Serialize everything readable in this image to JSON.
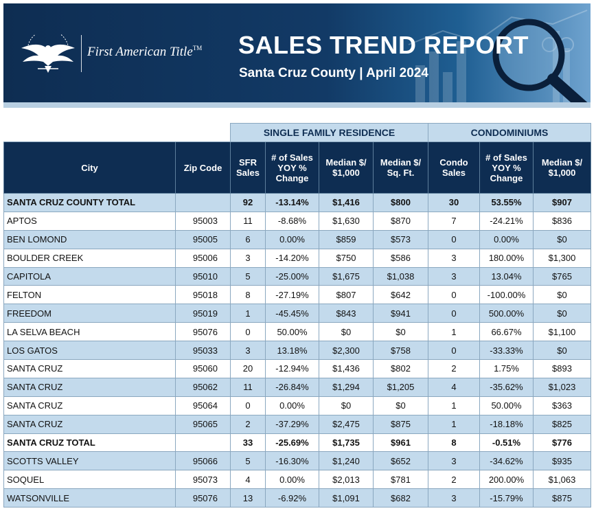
{
  "header": {
    "logo_icon": "eagle-icon",
    "company": "First American Title",
    "trademark": "TM",
    "title": "SALES TREND REPORT",
    "subtitle": "Santa Cruz County | April 2024"
  },
  "table": {
    "groups": {
      "sfr": "SINGLE FAMILY RESIDENCE",
      "condo": "CONDOMINIUMS"
    },
    "columns": [
      "City",
      "Zip Code",
      "SFR Sales",
      "# of Sales YOY % Change",
      "Median $/ $1,000",
      "Median $/ Sq. Ft.",
      "Condo Sales",
      "# of Sales YOY % Change",
      "Median $/ $1,000"
    ],
    "rows": [
      {
        "city": "SANTA CRUZ COUNTY TOTAL",
        "zip": "",
        "sfr_sales": "92",
        "sfr_yoy": "-13.14%",
        "sfr_median": "$1,416",
        "sfr_sqft": "$800",
        "condo_sales": "30",
        "condo_yoy": "53.55%",
        "condo_median": "$907",
        "total": true
      },
      {
        "city": "APTOS",
        "zip": "95003",
        "sfr_sales": "11",
        "sfr_yoy": "-8.68%",
        "sfr_median": "$1,630",
        "sfr_sqft": "$870",
        "condo_sales": "7",
        "condo_yoy": "-24.21%",
        "condo_median": "$836"
      },
      {
        "city": "BEN LOMOND",
        "zip": "95005",
        "sfr_sales": "6",
        "sfr_yoy": "0.00%",
        "sfr_median": "$859",
        "sfr_sqft": "$573",
        "condo_sales": "0",
        "condo_yoy": "0.00%",
        "condo_median": "$0"
      },
      {
        "city": "BOULDER CREEK",
        "zip": "95006",
        "sfr_sales": "3",
        "sfr_yoy": "-14.20%",
        "sfr_median": "$750",
        "sfr_sqft": "$586",
        "condo_sales": "3",
        "condo_yoy": "180.00%",
        "condo_median": "$1,300"
      },
      {
        "city": "CAPITOLA",
        "zip": "95010",
        "sfr_sales": "5",
        "sfr_yoy": "-25.00%",
        "sfr_median": "$1,675",
        "sfr_sqft": "$1,038",
        "condo_sales": "3",
        "condo_yoy": "13.04%",
        "condo_median": "$765"
      },
      {
        "city": "FELTON",
        "zip": "95018",
        "sfr_sales": "8",
        "sfr_yoy": "-27.19%",
        "sfr_median": "$807",
        "sfr_sqft": "$642",
        "condo_sales": "0",
        "condo_yoy": "-100.00%",
        "condo_median": "$0"
      },
      {
        "city": "FREEDOM",
        "zip": "95019",
        "sfr_sales": "1",
        "sfr_yoy": "-45.45%",
        "sfr_median": "$843",
        "sfr_sqft": "$941",
        "condo_sales": "0",
        "condo_yoy": "500.00%",
        "condo_median": "$0"
      },
      {
        "city": "LA SELVA BEACH",
        "zip": "95076",
        "sfr_sales": "0",
        "sfr_yoy": "50.00%",
        "sfr_median": "$0",
        "sfr_sqft": "$0",
        "condo_sales": "1",
        "condo_yoy": "66.67%",
        "condo_median": "$1,100"
      },
      {
        "city": "LOS GATOS",
        "zip": "95033",
        "sfr_sales": "3",
        "sfr_yoy": "13.18%",
        "sfr_median": "$2,300",
        "sfr_sqft": "$758",
        "condo_sales": "0",
        "condo_yoy": "-33.33%",
        "condo_median": "$0"
      },
      {
        "city": "SANTA CRUZ",
        "zip": "95060",
        "sfr_sales": "20",
        "sfr_yoy": "-12.94%",
        "sfr_median": "$1,436",
        "sfr_sqft": "$802",
        "condo_sales": "2",
        "condo_yoy": "1.75%",
        "condo_median": "$893"
      },
      {
        "city": "SANTA CRUZ",
        "zip": "95062",
        "sfr_sales": "11",
        "sfr_yoy": "-26.84%",
        "sfr_median": "$1,294",
        "sfr_sqft": "$1,205",
        "condo_sales": "4",
        "condo_yoy": "-35.62%",
        "condo_median": "$1,023"
      },
      {
        "city": "SANTA CRUZ",
        "zip": "95064",
        "sfr_sales": "0",
        "sfr_yoy": "0.00%",
        "sfr_median": "$0",
        "sfr_sqft": "$0",
        "condo_sales": "1",
        "condo_yoy": "50.00%",
        "condo_median": "$363"
      },
      {
        "city": "SANTA CRUZ",
        "zip": "95065",
        "sfr_sales": "2",
        "sfr_yoy": "-37.29%",
        "sfr_median": "$2,475",
        "sfr_sqft": "$875",
        "condo_sales": "1",
        "condo_yoy": "-18.18%",
        "condo_median": "$825"
      },
      {
        "city": "SANTA CRUZ TOTAL",
        "zip": "",
        "sfr_sales": "33",
        "sfr_yoy": "-25.69%",
        "sfr_median": "$1,735",
        "sfr_sqft": "$961",
        "condo_sales": "8",
        "condo_yoy": "-0.51%",
        "condo_median": "$776",
        "total": true
      },
      {
        "city": "SCOTTS VALLEY",
        "zip": "95066",
        "sfr_sales": "5",
        "sfr_yoy": "-16.30%",
        "sfr_median": "$1,240",
        "sfr_sqft": "$652",
        "condo_sales": "3",
        "condo_yoy": "-34.62%",
        "condo_median": "$935"
      },
      {
        "city": "SOQUEL",
        "zip": "95073",
        "sfr_sales": "4",
        "sfr_yoy": "0.00%",
        "sfr_median": "$2,013",
        "sfr_sqft": "$781",
        "condo_sales": "2",
        "condo_yoy": "200.00%",
        "condo_median": "$1,063"
      },
      {
        "city": "WATSONVILLE",
        "zip": "95076",
        "sfr_sales": "13",
        "sfr_yoy": "-6.92%",
        "sfr_median": "$1,091",
        "sfr_sqft": "$682",
        "condo_sales": "3",
        "condo_yoy": "-15.79%",
        "condo_median": "$875"
      }
    ]
  },
  "colors": {
    "navy": "#0e2d52",
    "light_blue": "#c3daec",
    "border": "#8aa7bf"
  }
}
